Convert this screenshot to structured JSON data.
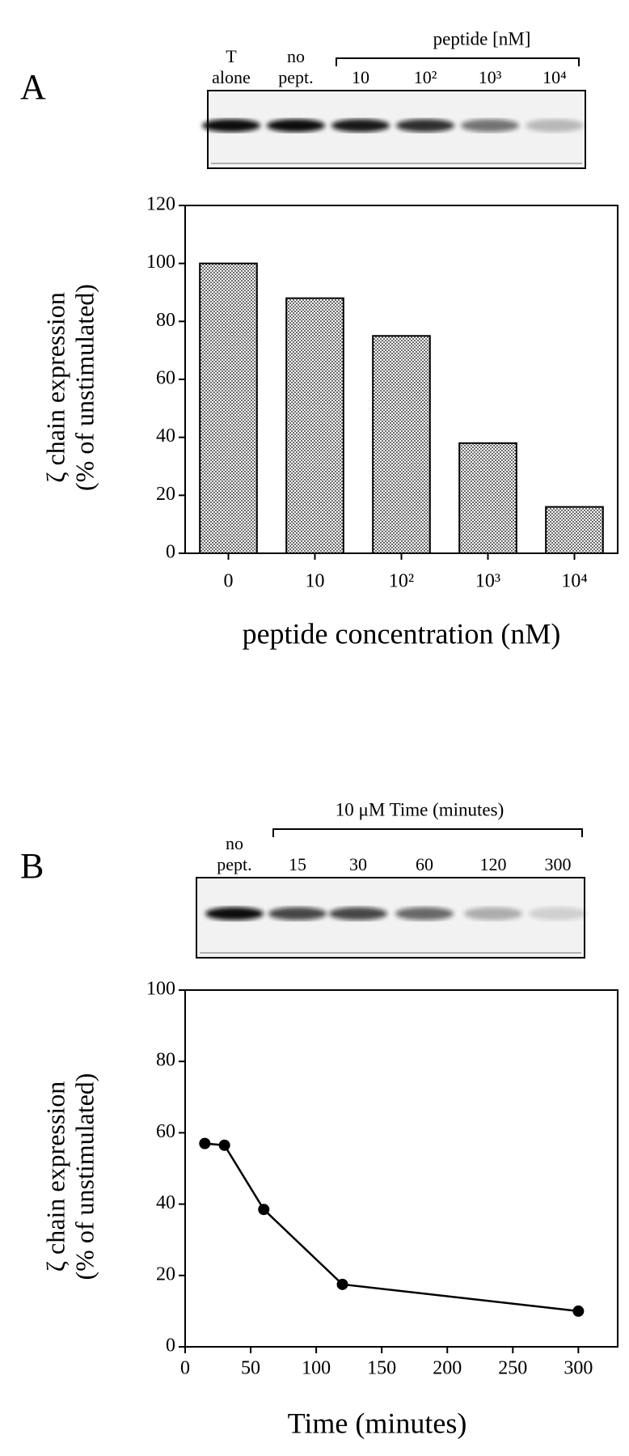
{
  "chart_data": [
    {
      "type": "bar",
      "panel_label": "A",
      "blot": {
        "header": "peptide [nM]",
        "lanes": [
          [
            "T",
            "alone"
          ],
          [
            "no",
            "pept."
          ],
          [
            "10"
          ],
          [
            "10²"
          ],
          [
            "10³"
          ],
          [
            "10⁴"
          ]
        ]
      },
      "categories": [
        "0",
        "10",
        "10²",
        "10³",
        "10⁴"
      ],
      "values": [
        100,
        88,
        75,
        38,
        16
      ],
      "ylim": [
        0,
        120
      ],
      "yticks": [
        0,
        20,
        40,
        60,
        80,
        100,
        120
      ],
      "xlabel": "peptide concentration (nM)",
      "ylabel": [
        "ζ chain expression",
        "(% of unstimulated)"
      ]
    },
    {
      "type": "line",
      "panel_label": "B",
      "blot": {
        "header": "10 μM  Time (minutes)",
        "lanes": [
          [
            "no",
            "pept."
          ],
          [
            "15"
          ],
          [
            "30"
          ],
          [
            "60"
          ],
          [
            "120"
          ],
          [
            "300"
          ]
        ]
      },
      "x": [
        15,
        30,
        60,
        120,
        300
      ],
      "series": [
        {
          "color": "#000000",
          "values": [
            57,
            56.5,
            38.5,
            17.5,
            10
          ]
        }
      ],
      "xlim": [
        0,
        330
      ],
      "xticks": [
        0,
        50,
        100,
        150,
        200,
        250,
        300
      ],
      "ylim": [
        0,
        100
      ],
      "yticks": [
        0,
        20,
        40,
        60,
        80,
        100
      ],
      "xlabel": "Time (minutes)",
      "ylabel": [
        "ζ chain expression",
        "(% of unstimulated)"
      ]
    }
  ]
}
